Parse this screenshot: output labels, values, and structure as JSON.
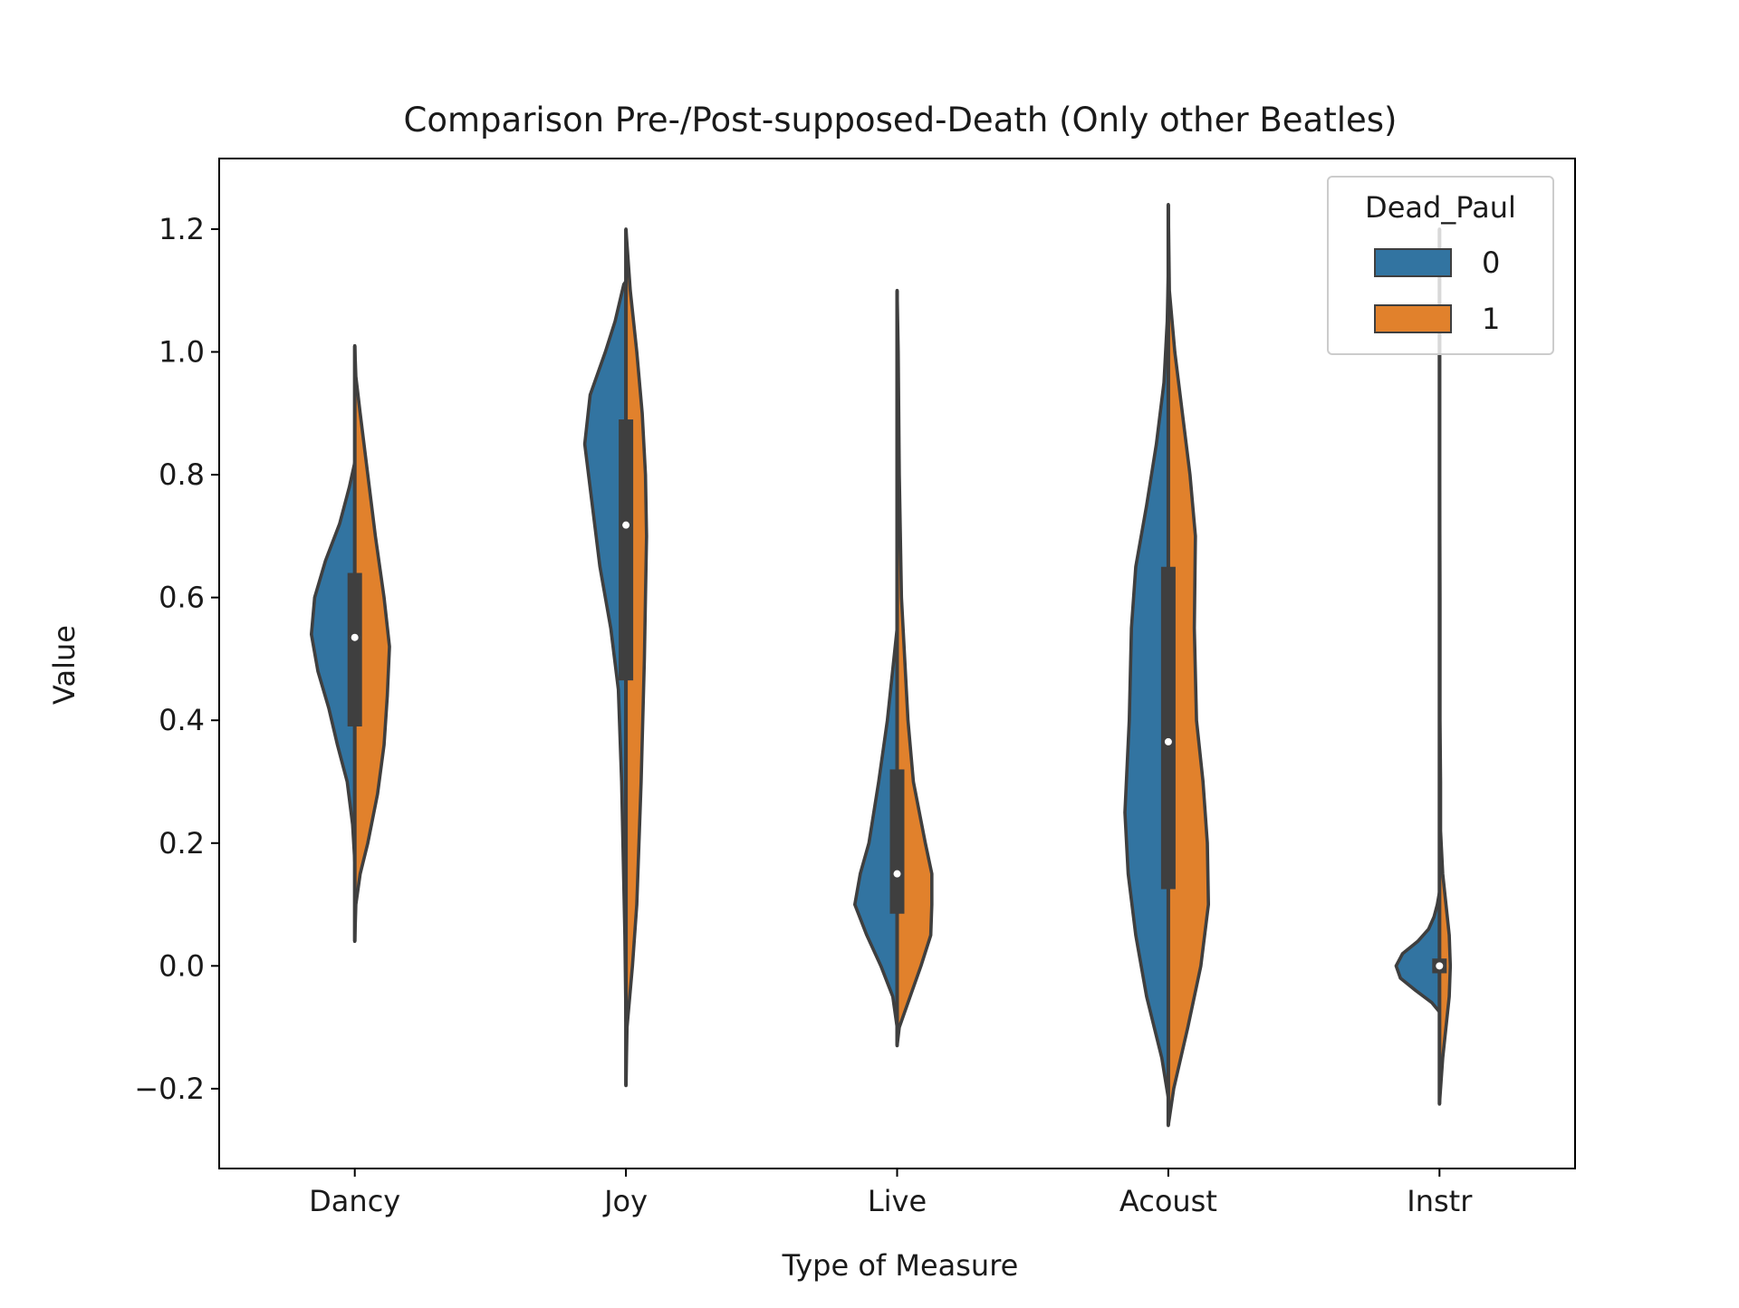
{
  "chart_data": {
    "type": "violin",
    "title": "Comparison Pre-/Post-supposed-Death (Only other Beatles)",
    "xlabel": "Type of Measure",
    "ylabel": "Value",
    "ylim": [
      -0.33,
      1.315
    ],
    "yticks": [
      -0.2,
      0.0,
      0.2,
      0.4,
      0.6,
      0.8,
      1.0,
      1.2
    ],
    "ytick_labels": [
      "−0.2",
      "0.0",
      "0.2",
      "0.4",
      "0.6",
      "0.8",
      "1.0",
      "1.2"
    ],
    "categories": [
      "Dancy",
      "Joy",
      "Live",
      "Acoust",
      "Instr"
    ],
    "split": true,
    "grid": false,
    "legend": {
      "title": "Dead_Paul",
      "position": "top-right",
      "entries": [
        {
          "label": "0",
          "color": "#3274a1"
        },
        {
          "label": "1",
          "color": "#e1812c"
        }
      ]
    },
    "series": [
      {
        "name": "0",
        "color": "#3274a1",
        "violins": [
          {
            "category": "Dancy",
            "profile": [
              [
                0.17,
                0
              ],
              [
                0.23,
                0.02
              ],
              [
                0.3,
                0.07
              ],
              [
                0.36,
                0.16
              ],
              [
                0.42,
                0.24
              ],
              [
                0.48,
                0.34
              ],
              [
                0.54,
                0.4
              ],
              [
                0.6,
                0.37
              ],
              [
                0.66,
                0.27
              ],
              [
                0.72,
                0.14
              ],
              [
                0.78,
                0.05
              ],
              [
                0.82,
                0
              ]
            ]
          },
          {
            "category": "Joy",
            "profile": [
              [
                -0.09,
                0
              ],
              [
                0.05,
                0.01
              ],
              [
                0.3,
                0.04
              ],
              [
                0.45,
                0.07
              ],
              [
                0.55,
                0.14
              ],
              [
                0.65,
                0.24
              ],
              [
                0.75,
                0.31
              ],
              [
                0.85,
                0.38
              ],
              [
                0.93,
                0.33
              ],
              [
                1.0,
                0.19
              ],
              [
                1.05,
                0.1
              ],
              [
                1.11,
                0.02
              ],
              [
                1.115,
                0
              ]
            ]
          },
          {
            "category": "Live",
            "profile": [
              [
                -0.1,
                0
              ],
              [
                -0.05,
                0.04
              ],
              [
                0.0,
                0.15
              ],
              [
                0.05,
                0.28
              ],
              [
                0.1,
                0.39
              ],
              [
                0.15,
                0.34
              ],
              [
                0.2,
                0.26
              ],
              [
                0.3,
                0.17
              ],
              [
                0.4,
                0.09
              ],
              [
                0.5,
                0.03
              ],
              [
                0.55,
                0
              ]
            ]
          },
          {
            "category": "Acoust",
            "profile": [
              [
                -0.215,
                0
              ],
              [
                -0.15,
                0.06
              ],
              [
                -0.05,
                0.2
              ],
              [
                0.05,
                0.3
              ],
              [
                0.15,
                0.37
              ],
              [
                0.25,
                0.4
              ],
              [
                0.4,
                0.36
              ],
              [
                0.55,
                0.34
              ],
              [
                0.65,
                0.3
              ],
              [
                0.75,
                0.2
              ],
              [
                0.85,
                0.11
              ],
              [
                0.95,
                0.04
              ],
              [
                1.05,
                0.01
              ],
              [
                1.13,
                0
              ]
            ]
          },
          {
            "category": "Instr",
            "profile": [
              [
                -0.075,
                0
              ],
              [
                -0.06,
                0.07
              ],
              [
                -0.04,
                0.22
              ],
              [
                -0.02,
                0.36
              ],
              [
                0.0,
                0.4
              ],
              [
                0.02,
                0.34
              ],
              [
                0.04,
                0.2
              ],
              [
                0.06,
                0.1
              ],
              [
                0.08,
                0.05
              ],
              [
                0.1,
                0.02
              ],
              [
                0.12,
                0
              ]
            ]
          }
        ]
      },
      {
        "name": "1",
        "color": "#e1812c",
        "violins": [
          {
            "category": "Dancy",
            "profile": [
              [
                0.04,
                0
              ],
              [
                0.1,
                0.01
              ],
              [
                0.15,
                0.05
              ],
              [
                0.2,
                0.12
              ],
              [
                0.28,
                0.21
              ],
              [
                0.36,
                0.27
              ],
              [
                0.44,
                0.3
              ],
              [
                0.52,
                0.32
              ],
              [
                0.6,
                0.27
              ],
              [
                0.7,
                0.19
              ],
              [
                0.8,
                0.12
              ],
              [
                0.9,
                0.05
              ],
              [
                0.96,
                0.01
              ],
              [
                1.01,
                0
              ]
            ]
          },
          {
            "category": "Joy",
            "profile": [
              [
                -0.195,
                0
              ],
              [
                -0.1,
                0.01
              ],
              [
                0.0,
                0.06
              ],
              [
                0.1,
                0.1
              ],
              [
                0.3,
                0.14
              ],
              [
                0.5,
                0.17
              ],
              [
                0.7,
                0.19
              ],
              [
                0.8,
                0.18
              ],
              [
                0.9,
                0.15
              ],
              [
                1.0,
                0.1
              ],
              [
                1.1,
                0.04
              ],
              [
                1.2,
                0
              ]
            ]
          },
          {
            "category": "Live",
            "profile": [
              [
                -0.13,
                0
              ],
              [
                -0.1,
                0.02
              ],
              [
                -0.05,
                0.12
              ],
              [
                0.0,
                0.22
              ],
              [
                0.05,
                0.31
              ],
              [
                0.1,
                0.32
              ],
              [
                0.15,
                0.32
              ],
              [
                0.2,
                0.26
              ],
              [
                0.3,
                0.15
              ],
              [
                0.4,
                0.1
              ],
              [
                0.5,
                0.07
              ],
              [
                0.6,
                0.04
              ],
              [
                0.8,
                0.02
              ],
              [
                1.0,
                0.01
              ],
              [
                1.1,
                0
              ]
            ]
          },
          {
            "category": "Acoust",
            "profile": [
              [
                -0.26,
                0
              ],
              [
                -0.2,
                0.05
              ],
              [
                -0.1,
                0.18
              ],
              [
                0.0,
                0.3
              ],
              [
                0.1,
                0.37
              ],
              [
                0.2,
                0.36
              ],
              [
                0.3,
                0.32
              ],
              [
                0.4,
                0.26
              ],
              [
                0.55,
                0.24
              ],
              [
                0.7,
                0.25
              ],
              [
                0.8,
                0.2
              ],
              [
                0.9,
                0.13
              ],
              [
                1.0,
                0.06
              ],
              [
                1.1,
                0.01
              ],
              [
                1.24,
                0
              ]
            ]
          },
          {
            "category": "Instr",
            "profile": [
              [
                -0.225,
                0
              ],
              [
                -0.15,
                0.03
              ],
              [
                -0.05,
                0.09
              ],
              [
                0.0,
                0.1
              ],
              [
                0.05,
                0.09
              ],
              [
                0.1,
                0.06
              ],
              [
                0.15,
                0.03
              ],
              [
                0.22,
                0.01
              ],
              [
                0.3,
                0.01
              ],
              [
                0.4,
                0.005
              ],
              [
                0.6,
                0.005
              ],
              [
                0.8,
                0.002
              ],
              [
                1.0,
                0.002
              ],
              [
                1.2,
                0
              ]
            ]
          }
        ]
      }
    ],
    "boxes": [
      {
        "category": "Dancy",
        "q1": 0.39,
        "median": 0.535,
        "q3": 0.64,
        "whisker_low": 0.04,
        "whisker_high": 1.01
      },
      {
        "category": "Joy",
        "q1": 0.465,
        "median": 0.718,
        "q3": 0.89,
        "whisker_low": -0.195,
        "whisker_high": 1.2
      },
      {
        "category": "Live",
        "q1": 0.085,
        "median": 0.15,
        "q3": 0.32,
        "whisker_low": -0.13,
        "whisker_high": 1.1
      },
      {
        "category": "Acoust",
        "q1": 0.125,
        "median": 0.365,
        "q3": 0.65,
        "whisker_low": -0.26,
        "whisker_high": 1.24
      },
      {
        "category": "Instr",
        "q1": -0.012,
        "median": 0.0,
        "q3": 0.012,
        "whisker_low": -0.225,
        "whisker_high": 1.2
      }
    ]
  }
}
